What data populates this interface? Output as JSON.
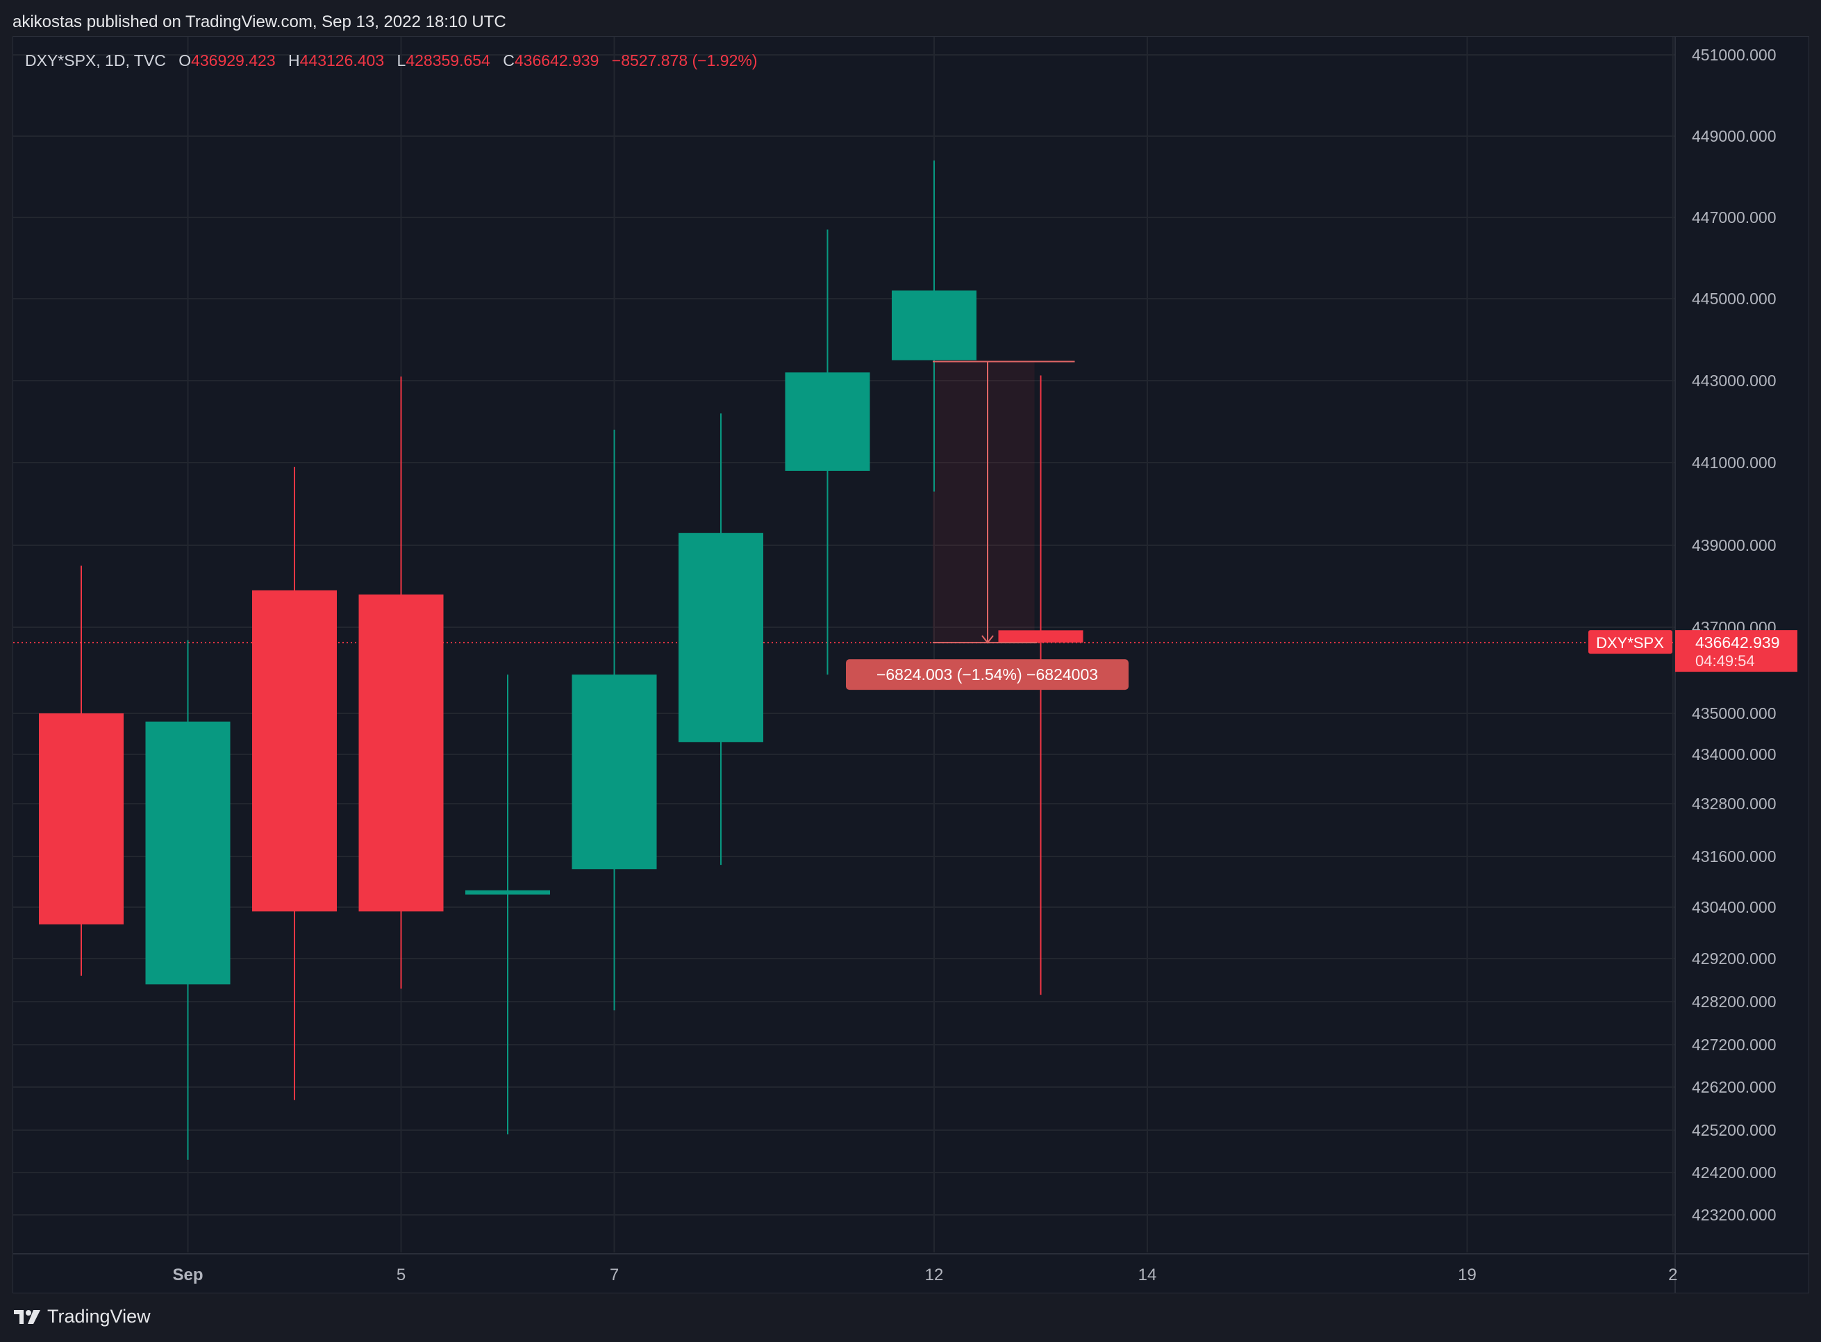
{
  "header": {
    "published_text": "akikostas published on TradingView.com, Sep 13, 2022 18:10 UTC"
  },
  "legend": {
    "symbol": "DXY*SPX, 1D, TVC",
    "open_label": "O",
    "open": "436929.423",
    "high_label": "H",
    "high": "443126.403",
    "low_label": "L",
    "low": "428359.654",
    "close_label": "C",
    "close": "436642.939",
    "change": "−8527.878 (−1.92%)"
  },
  "price_marker": {
    "symbol_label": "DXY*SPX",
    "price": "436642.939",
    "countdown": "04:49:54",
    "value": 436642.939
  },
  "measure": {
    "label": "−6824.003 (−1.54%) −6824003",
    "from": 443467,
    "to": 436643
  },
  "footer": {
    "brand": "TradingView"
  },
  "colors": {
    "up": "#089981",
    "down": "#f23645",
    "background": "#141823",
    "grid": "#22262f",
    "text": "#d1d4dc",
    "measure_label_bg": "#cd5252"
  },
  "chart_data": {
    "type": "candlestick",
    "title": "DXY*SPX, 1D, TVC",
    "xlabel": "",
    "ylabel": "",
    "x_ticks": [
      {
        "label": "Sep",
        "index": 1,
        "bold": true
      },
      {
        "label": "5",
        "index": 3
      },
      {
        "label": "7",
        "index": 5
      },
      {
        "label": "12",
        "index": 8
      },
      {
        "label": "14",
        "index": 10
      },
      {
        "label": "19",
        "index": 13
      },
      {
        "label": "2",
        "index": 14.93
      }
    ],
    "y_ticks": [
      451000,
      449000,
      447000,
      445000,
      443000,
      441000,
      439000,
      437000,
      435000,
      434000,
      432800,
      431600,
      430400,
      429200,
      428200,
      427200,
      426200,
      425200,
      424200,
      423200
    ],
    "y_tick_labels": [
      "451000.000",
      "449000.000",
      "447000.000",
      "445000.000",
      "443000.000",
      "441000.000",
      "439000.000",
      "437000.000",
      "435000.000",
      "434000.000",
      "432800.000",
      "431600.000",
      "430400.000",
      "429200.000",
      "428200.000",
      "427200.000",
      "426200.000",
      "425200.000",
      "424200.000",
      "423200.000"
    ],
    "candles": [
      {
        "index": 0,
        "open": 435000,
        "high": 438500,
        "low": 428800,
        "close": 430000
      },
      {
        "index": 1,
        "open": 428600,
        "high": 436700,
        "low": 424500,
        "close": 434800
      },
      {
        "index": 2,
        "open": 437900,
        "high": 440900,
        "low": 425900,
        "close": 430300
      },
      {
        "index": 3,
        "open": 437800,
        "high": 443100,
        "low": 428500,
        "close": 430300
      },
      {
        "index": 4,
        "open": 430700,
        "high": 435900,
        "low": 425100,
        "close": 430800
      },
      {
        "index": 5,
        "open": 431300,
        "high": 441800,
        "low": 428000,
        "close": 435900
      },
      {
        "index": 6,
        "open": 434300,
        "high": 442200,
        "low": 431400,
        "close": 439300
      },
      {
        "index": 7,
        "open": 440800,
        "high": 446700,
        "low": 435900,
        "close": 443200
      },
      {
        "index": 8,
        "open": 443500,
        "high": 448400,
        "low": 440300,
        "close": 445200
      },
      {
        "index": 9,
        "open": 436929.423,
        "high": 443126.403,
        "low": 428359.654,
        "close": 436642.939
      }
    ]
  }
}
